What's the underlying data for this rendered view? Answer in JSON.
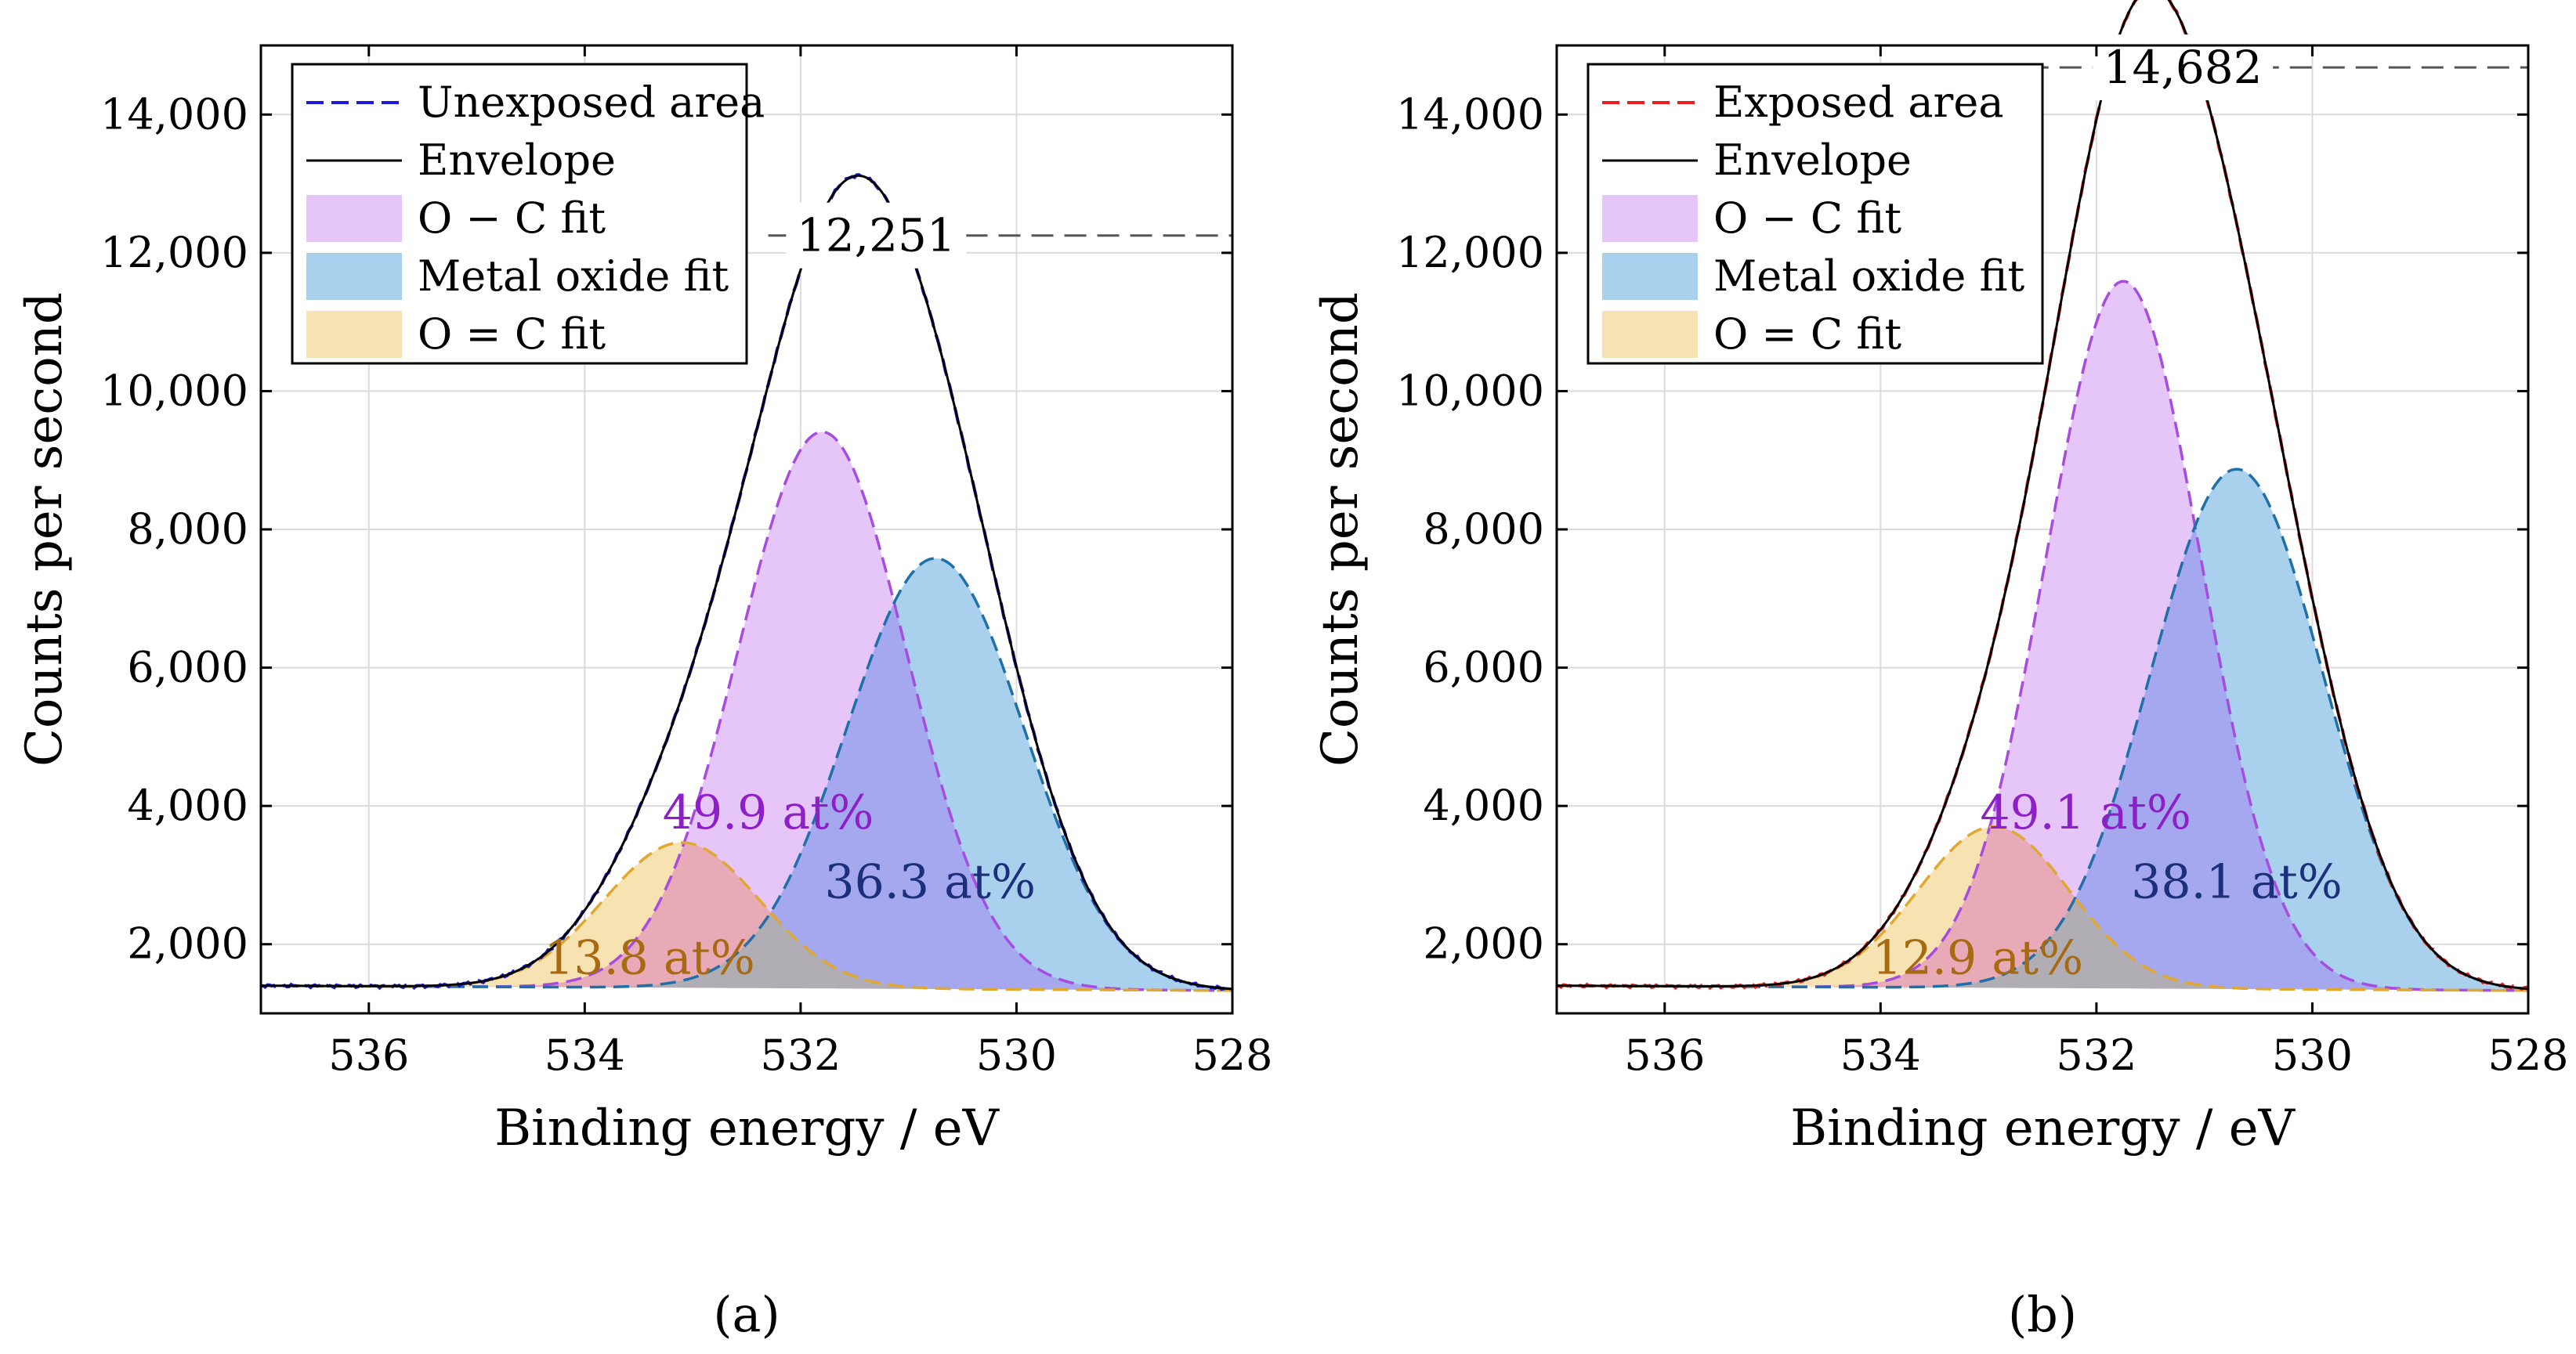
{
  "figure": {
    "background": "#ffffff",
    "colors": {
      "oc_fill": "#e6c6f8",
      "oc_line": "#a64ce0",
      "mo_fill": "#a9d0ec",
      "mo_line": "#1f6fa8",
      "oeqc_fill": "#f7e3b2",
      "oeqc_line": "#e0a830",
      "overlap_oc_mo": "#a5a8ee",
      "overlap_oeqc_oc": "#e8aab6",
      "overlap_oeqc_mo": "#b0aeb4",
      "envelope": "#000000",
      "grid": "#dcdcdc",
      "ref_line": "#555555"
    }
  },
  "chart_data": [
    {
      "type": "area",
      "panel_caption": "(a)",
      "xlabel": "Binding energy / eV",
      "ylabel": "Counts per second",
      "xlim": [
        537,
        528
      ],
      "ylim": [
        1000,
        15000
      ],
      "xticks": [
        536,
        534,
        532,
        530,
        528
      ],
      "yticks": [
        2000,
        4000,
        6000,
        8000,
        10000,
        12000,
        14000
      ],
      "xtick_labels": [
        "536",
        "534",
        "532",
        "530",
        "528"
      ],
      "ytick_labels": [
        "2,000",
        "4,000",
        "6,000",
        "8,000",
        "10,000",
        "12,000",
        "14,000"
      ],
      "grid": true,
      "legend": {
        "position": "top-left",
        "entries": [
          "Unexposed area",
          "Envelope",
          "O − C fit",
          "Metal oxide fit",
          "O = C fit"
        ]
      },
      "measured_color": "#1a1ad6",
      "baseline": {
        "left": 1400,
        "right": 1330
      },
      "components": [
        {
          "name": "O − C fit",
          "center": 531.8,
          "sigma": 0.78,
          "amplitude": 8050,
          "percent_label": "49.9 at%",
          "label_color": "#8c1fc8",
          "label_x": 532.3,
          "label_y": 3900
        },
        {
          "name": "Metal oxide fit",
          "center": 530.75,
          "sigma": 0.82,
          "amplitude": 6230,
          "percent_label": "36.3 at%",
          "label_color": "#1c2f7a",
          "label_x": 530.8,
          "label_y": 2900
        },
        {
          "name": "O = C fit",
          "center": 533.1,
          "sigma": 0.72,
          "amplitude": 2100,
          "percent_label": "13.8 at%",
          "label_color": "#a86a10",
          "label_x": 533.4,
          "label_y": 1800
        }
      ],
      "peak": {
        "value_label": "12,251",
        "value": 12251,
        "label_x": 531.3,
        "line_x_from": 532.3,
        "line_x_to": 528.0
      }
    },
    {
      "type": "area",
      "panel_caption": "(b)",
      "xlabel": "Binding energy / eV",
      "ylabel": "Counts per second",
      "xlim": [
        537,
        528
      ],
      "ylim": [
        1000,
        15000
      ],
      "xticks": [
        536,
        534,
        532,
        530,
        528
      ],
      "yticks": [
        2000,
        4000,
        6000,
        8000,
        10000,
        12000,
        14000
      ],
      "xtick_labels": [
        "536",
        "534",
        "532",
        "530",
        "528"
      ],
      "ytick_labels": [
        "2,000",
        "4,000",
        "6,000",
        "8,000",
        "10,000",
        "12,000",
        "14,000"
      ],
      "grid": true,
      "legend": {
        "position": "top-left",
        "entries": [
          "Exposed area",
          "Envelope",
          "O − C fit",
          "Metal oxide fit",
          "O = C fit"
        ]
      },
      "measured_color": "#e62020",
      "baseline": {
        "left": 1400,
        "right": 1330
      },
      "components": [
        {
          "name": "O − C fit",
          "center": 531.75,
          "sigma": 0.72,
          "amplitude": 10230,
          "percent_label": "49.1 at%",
          "label_color": "#8c1fc8",
          "label_x": 532.1,
          "label_y": 3900
        },
        {
          "name": "Metal oxide fit",
          "center": 530.7,
          "sigma": 0.8,
          "amplitude": 7520,
          "percent_label": "38.1 at%",
          "label_color": "#1c2f7a",
          "label_x": 530.7,
          "label_y": 2900
        },
        {
          "name": "O = C fit",
          "center": 532.95,
          "sigma": 0.7,
          "amplitude": 2330,
          "percent_label": "12.9 at%",
          "label_color": "#a86a10",
          "label_x": 533.1,
          "label_y": 1800
        }
      ],
      "peak": {
        "value_label": "14,682",
        "value": 14682,
        "label_x": 531.2,
        "line_x_from": 536.0,
        "line_x_to": 528.0
      }
    }
  ]
}
